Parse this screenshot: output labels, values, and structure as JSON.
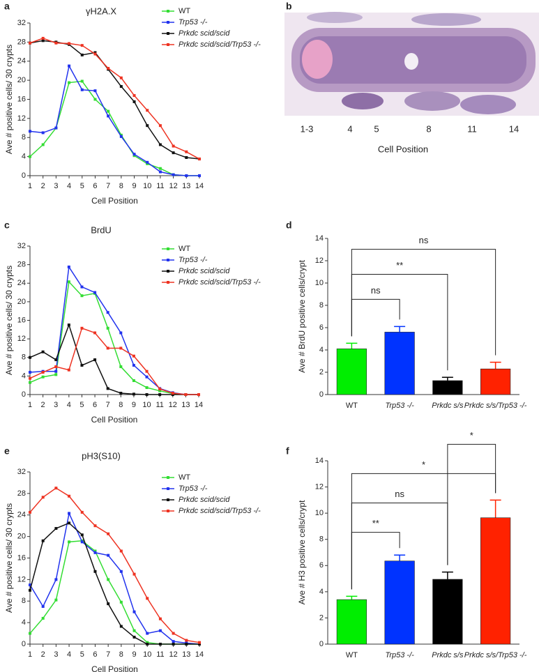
{
  "chart_data": [
    {
      "type": "line",
      "panel": "a",
      "title": "γH2A.X",
      "xlabel": "Cell Position",
      "ylabel": "Ave # positive cells/ 30 crypts",
      "x": [
        1,
        2,
        3,
        4,
        5,
        6,
        7,
        8,
        9,
        10,
        11,
        12,
        13,
        14
      ],
      "xlim": [
        1,
        14
      ],
      "xticks": [
        1,
        2,
        3,
        4,
        5,
        6,
        7,
        8,
        9,
        10,
        11,
        12,
        13,
        14
      ],
      "ylim": [
        0,
        32
      ],
      "yticks": [
        0,
        4,
        8,
        12,
        16,
        20,
        24,
        28,
        32
      ],
      "series": [
        {
          "name": "WT",
          "color": "#33dd33",
          "values": [
            4,
            6.5,
            10,
            19.5,
            19.8,
            16,
            13.5,
            8.5,
            4.2,
            2.5,
            1.5,
            0.2,
            0,
            0
          ]
        },
        {
          "name": "Trp53 -/-",
          "color": "#2233ee",
          "values": [
            9.3,
            9,
            10,
            23,
            18,
            17.8,
            12.5,
            8.2,
            4.5,
            2.8,
            0.8,
            0.2,
            0,
            0
          ]
        },
        {
          "name": "Prkdc scid/scid",
          "color": "#111111",
          "values": [
            27.8,
            28.3,
            28,
            27.5,
            25.3,
            25.8,
            22.3,
            18.7,
            15.5,
            10.5,
            6.5,
            4.8,
            3.8,
            3.5
          ]
        },
        {
          "name": "Prkdc scid/scid/Trp53 -/-",
          "color": "#ee3322",
          "values": [
            27.8,
            28.8,
            27.8,
            27.7,
            27.3,
            25.5,
            22.5,
            20.5,
            16.8,
            13.7,
            10.5,
            6.2,
            5,
            3.5
          ]
        }
      ]
    },
    {
      "type": "line",
      "panel": "c",
      "title": "BrdU",
      "xlabel": "Cell Position",
      "ylabel": "Ave # positive cells/ 30 crypts",
      "x": [
        1,
        2,
        3,
        4,
        5,
        6,
        7,
        8,
        9,
        10,
        11,
        12,
        13,
        14
      ],
      "xlim": [
        1,
        14
      ],
      "xticks": [
        1,
        2,
        3,
        4,
        5,
        6,
        7,
        8,
        9,
        10,
        11,
        12,
        13,
        14
      ],
      "ylim": [
        0,
        32
      ],
      "yticks": [
        0,
        4,
        8,
        12,
        16,
        20,
        24,
        28,
        32
      ],
      "series": [
        {
          "name": "WT",
          "color": "#33dd33",
          "values": [
            2.6,
            3.8,
            4.3,
            24.3,
            21.3,
            21.8,
            14.3,
            6,
            3,
            1.5,
            0.8,
            0.2,
            0,
            0
          ]
        },
        {
          "name": "Trp53 -/-",
          "color": "#2233ee",
          "values": [
            4.8,
            5,
            5,
            27.5,
            23.2,
            22,
            17.7,
            13.3,
            6.3,
            3.8,
            1.3,
            0.4,
            0,
            0
          ]
        },
        {
          "name": "Prkdc scid/scid",
          "color": "#111111",
          "values": [
            8,
            9.2,
            7.5,
            15,
            6.3,
            7.5,
            1.3,
            0.3,
            0.1,
            0,
            0,
            0,
            0,
            0
          ]
        },
        {
          "name": "Prkdc scid/scid/Trp53 -/-",
          "color": "#ee3322",
          "values": [
            3.5,
            4.8,
            6,
            5.3,
            14.3,
            13.3,
            10,
            10,
            8.3,
            5,
            1.2,
            0.3,
            0,
            0
          ]
        }
      ]
    },
    {
      "type": "bar",
      "panel": "d",
      "ylabel": "Ave # BrdU positive cells/crypt",
      "categories": [
        "WT",
        "Trp53 -/-",
        "Prkdc s/s",
        "Prkdc s/s/Trp53 -/-"
      ],
      "values": [
        4.1,
        5.6,
        1.25,
        2.3
      ],
      "errors": [
        0.5,
        0.5,
        0.3,
        0.6
      ],
      "colors": [
        "#00ee00",
        "#0033ff",
        "#000000",
        "#ff2200"
      ],
      "ylim": [
        0,
        14
      ],
      "yticks": [
        0,
        2,
        4,
        6,
        8,
        10,
        12,
        14
      ],
      "brackets": [
        {
          "from": 0,
          "to": 1,
          "label": "ns"
        },
        {
          "from": 0,
          "to": 2,
          "label": "**"
        },
        {
          "from": 0,
          "to": 3,
          "label": "ns"
        }
      ]
    },
    {
      "type": "line",
      "panel": "e",
      "title": "pH3(S10)",
      "xlabel": "Cell Position",
      "ylabel": "Ave # positive cells/ 30 crypts",
      "x": [
        1,
        2,
        3,
        4,
        5,
        6,
        7,
        8,
        9,
        10,
        11,
        12,
        13,
        14
      ],
      "xlim": [
        1,
        14
      ],
      "xticks": [
        1,
        2,
        3,
        4,
        5,
        6,
        7,
        8,
        9,
        10,
        11,
        12,
        13,
        14
      ],
      "ylim": [
        0,
        32
      ],
      "yticks": [
        0,
        4,
        8,
        12,
        16,
        20,
        24,
        28,
        32
      ],
      "series": [
        {
          "name": "WT",
          "color": "#33dd33",
          "values": [
            2,
            4.8,
            8.2,
            19,
            19.2,
            17.3,
            12,
            7.8,
            2.5,
            0.3,
            0,
            0,
            0,
            0
          ]
        },
        {
          "name": "Trp53 -/-",
          "color": "#2233ee",
          "values": [
            11,
            7,
            12,
            24.3,
            19,
            17,
            16.5,
            13.5,
            6,
            2,
            2.5,
            0.5,
            0.2,
            0
          ]
        },
        {
          "name": "Prkdc scid/scid",
          "color": "#111111",
          "values": [
            10,
            19.2,
            21.5,
            22.5,
            20.3,
            13.5,
            7.5,
            3.3,
            1.3,
            0,
            0,
            0,
            0,
            0
          ]
        },
        {
          "name": "Prkdc scid/scid/Trp53 -/-",
          "color": "#ee3322",
          "values": [
            24.5,
            27.3,
            29,
            27.5,
            24.5,
            22,
            20.5,
            17.3,
            13,
            8.5,
            4.7,
            2,
            0.7,
            0.3
          ]
        }
      ]
    },
    {
      "type": "bar",
      "panel": "f",
      "ylabel": "Ave # H3 positive cells/crypt",
      "categories": [
        "WT",
        "Trp53 -/-",
        "Prkdc s/s",
        "Prkdc s/s/Trp53 -/-"
      ],
      "values": [
        3.4,
        6.35,
        4.95,
        9.65
      ],
      "errors": [
        0.25,
        0.45,
        0.55,
        1.35
      ],
      "colors": [
        "#00ee00",
        "#0033ff",
        "#000000",
        "#ff2200"
      ],
      "ylim": [
        0,
        14
      ],
      "yticks": [
        0,
        2,
        4,
        6,
        8,
        10,
        12,
        14
      ],
      "brackets": [
        {
          "from": 0,
          "to": 1,
          "label": "**"
        },
        {
          "from": 0,
          "to": 2,
          "label": "ns"
        },
        {
          "from": 0,
          "to": 3,
          "label": "*"
        },
        {
          "from": 2,
          "to": 3,
          "label": "*"
        }
      ]
    }
  ],
  "image_panel": {
    "panel": "b",
    "position_labels": [
      "1-3",
      "4",
      "5",
      "8",
      "11",
      "14"
    ],
    "axis_label": "Cell Position"
  }
}
